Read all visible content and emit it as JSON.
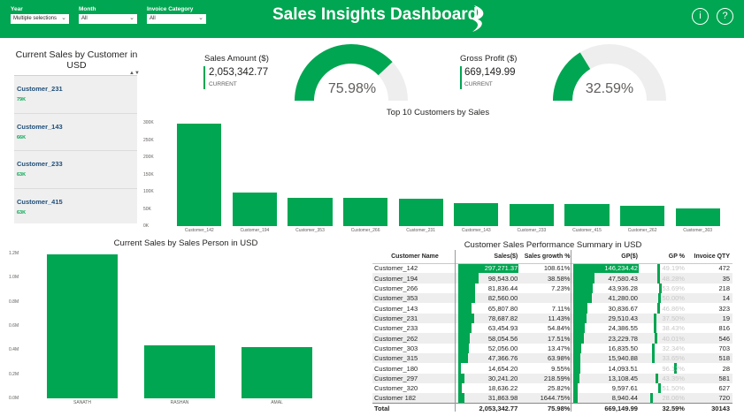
{
  "header": {
    "title": "Sales Insights Dashboard",
    "filters": [
      {
        "label": "Year",
        "value": "Multiple selections"
      },
      {
        "label": "Month",
        "value": "All"
      },
      {
        "label": "Invoice Category",
        "value": "All"
      }
    ],
    "icons": [
      "info-icon",
      "help-icon"
    ],
    "info_glyph": "i",
    "help_glyph": "?"
  },
  "customer_list": {
    "title": "Current Sales by Customer in USD",
    "items": [
      {
        "name": "Customer_231",
        "value": "79K"
      },
      {
        "name": "Customer_143",
        "value": "66K"
      },
      {
        "name": "Customer_233",
        "value": "63K"
      },
      {
        "name": "Customer_415",
        "value": "63K"
      }
    ]
  },
  "kpis": {
    "sales": {
      "label": "Sales Amount ($)",
      "value": "2,053,342.77",
      "sub": "CURRENT",
      "pct_label": "75.98%",
      "pct": 0.7598
    },
    "profit": {
      "label": "Gross Profit ($)",
      "value": "669,149.99",
      "sub": "CURRENT",
      "pct_label": "32.59%",
      "pct": 0.3259
    }
  },
  "colors": {
    "accent": "#00a651",
    "gauge_bg": "#eeeeee",
    "header": "#00a651"
  },
  "chart_data": [
    {
      "type": "bar",
      "title": "Top 10 Customers by Sales",
      "categories": [
        "Customer_142",
        "Customer_194",
        "Customer_353",
        "Customer_266",
        "Customer_231",
        "Customer_143",
        "Customer_233",
        "Customer_415",
        "Customer_262",
        "Customer_303"
      ],
      "values": [
        297271,
        98543,
        82560,
        81836,
        79000,
        66000,
        63455,
        63000,
        58054,
        52056
      ],
      "yticks": [
        "0K",
        "50K",
        "100K",
        "150K",
        "200K",
        "250K",
        "300K"
      ],
      "ylim": [
        0,
        300000
      ]
    },
    {
      "type": "bar",
      "title": "Current Sales by Sales Person in USD",
      "categories": [
        "SANATH",
        "RASHAN",
        "AMAL"
      ],
      "values": [
        1190000,
        440000,
        425000
      ],
      "yticks": [
        "0.0M",
        "0.2M",
        "0.4M",
        "0.6M",
        "0.8M",
        "1.0M",
        "1.2M"
      ],
      "ylim": [
        0,
        1200000
      ]
    }
  ],
  "table": {
    "title": "Customer Sales Performance Summary in USD",
    "columns": [
      "Customer Name",
      "Sales($)",
      "Sales growth %",
      "GP($)",
      "GP %",
      "Invoice QTY"
    ],
    "rows": [
      {
        "name": "Customer_142",
        "sales": "297,271.37",
        "sales_n": 297271,
        "growth": "108.61%",
        "gp": "146,234.42",
        "gp_n": 146234,
        "gpp": "49.19%",
        "gpp_n": 0.4919,
        "qty": "472"
      },
      {
        "name": "Customer_194",
        "sales": "98,543.00",
        "sales_n": 98543,
        "growth": "38.58%",
        "gp": "47,580.43",
        "gp_n": 47580,
        "gpp": "48.28%",
        "gpp_n": 0.4828,
        "qty": "35"
      },
      {
        "name": "Customer_266",
        "sales": "81,836.44",
        "sales_n": 81836,
        "growth": "7.23%",
        "gp": "43,936.28",
        "gp_n": 43936,
        "gpp": "53.69%",
        "gpp_n": 0.5369,
        "qty": "218"
      },
      {
        "name": "Customer_353",
        "sales": "82,560.00",
        "sales_n": 82560,
        "growth": "",
        "gp": "41,280.00",
        "gp_n": 41280,
        "gpp": "50.00%",
        "gpp_n": 0.5,
        "qty": "14"
      },
      {
        "name": "Customer_143",
        "sales": "65,807.80",
        "sales_n": 65808,
        "growth": "7.11%",
        "gp": "30,836.67",
        "gp_n": 30837,
        "gpp": "46.86%",
        "gpp_n": 0.4686,
        "qty": "323"
      },
      {
        "name": "Customer_231",
        "sales": "78,687.82",
        "sales_n": 78688,
        "growth": "11.43%",
        "gp": "29,510.43",
        "gp_n": 29510,
        "gpp": "37.50%",
        "gpp_n": 0.375,
        "qty": "19"
      },
      {
        "name": "Customer_233",
        "sales": "63,454.93",
        "sales_n": 63455,
        "growth": "54.84%",
        "gp": "24,386.55",
        "gp_n": 24387,
        "gpp": "38.43%",
        "gpp_n": 0.3843,
        "qty": "816"
      },
      {
        "name": "Customer_262",
        "sales": "58,054.56",
        "sales_n": 58055,
        "growth": "17.51%",
        "gp": "23,229.78",
        "gp_n": 23230,
        "gpp": "40.01%",
        "gpp_n": 0.4001,
        "qty": "546"
      },
      {
        "name": "Customer_303",
        "sales": "52,056.00",
        "sales_n": 52056,
        "growth": "13.47%",
        "gp": "16,835.50",
        "gp_n": 16836,
        "gpp": "32.34%",
        "gpp_n": 0.3234,
        "qty": "703"
      },
      {
        "name": "Customer_315",
        "sales": "47,366.76",
        "sales_n": 47367,
        "growth": "63.98%",
        "gp": "15,940.88",
        "gp_n": 15941,
        "gpp": "33.65%",
        "gpp_n": 0.3365,
        "qty": "518"
      },
      {
        "name": "Customer_180",
        "sales": "14,654.20",
        "sales_n": 14654,
        "growth": "9.55%",
        "gp": "14,093.51",
        "gp_n": 14094,
        "gpp": "96.17%",
        "gpp_n": 0.9617,
        "qty": "28"
      },
      {
        "name": "Customer_297",
        "sales": "30,241.20",
        "sales_n": 30241,
        "growth": "218.59%",
        "gp": "13,108.45",
        "gp_n": 13108,
        "gpp": "43.35%",
        "gpp_n": 0.4335,
        "qty": "581"
      },
      {
        "name": "Customer_320",
        "sales": "18,636.22",
        "sales_n": 18636,
        "growth": "25.82%",
        "gp": "9,597.61",
        "gp_n": 9598,
        "gpp": "51.50%",
        "gpp_n": 0.515,
        "qty": "627"
      },
      {
        "name": "Customer 182",
        "sales": "31,863.98",
        "sales_n": 31864,
        "growth": "1644.75%",
        "gp": "8,940.44",
        "gp_n": 8940,
        "gpp": "28.06%",
        "gpp_n": 0.2806,
        "qty": "720"
      }
    ],
    "total": {
      "label": "Total",
      "sales": "2,053,342.77",
      "growth": "75.98%",
      "gp": "669,149.99",
      "gpp": "32.59%",
      "qty": "30143"
    }
  }
}
